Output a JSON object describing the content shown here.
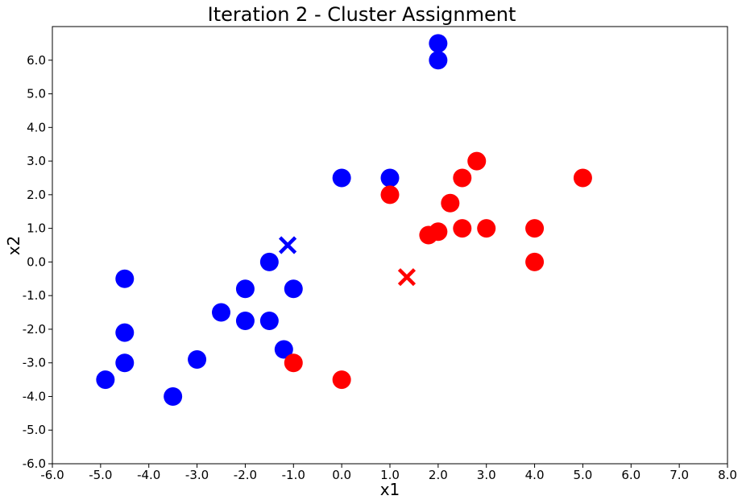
{
  "chart_data": {
    "type": "scatter",
    "title": "Iteration 2 - Cluster Assignment",
    "xlabel": "x1",
    "ylabel": "x2",
    "xlim": [
      -6.0,
      8.0
    ],
    "ylim": [
      -6.0,
      7.0
    ],
    "xticks": [
      -6.0,
      -5.0,
      -4.0,
      -3.0,
      -2.0,
      -1.0,
      0.0,
      1.0,
      2.0,
      3.0,
      4.0,
      5.0,
      6.0,
      7.0,
      8.0
    ],
    "yticks": [
      -6.0,
      -5.0,
      -4.0,
      -3.0,
      -2.0,
      -1.0,
      0.0,
      1.0,
      2.0,
      3.0,
      4.0,
      5.0,
      6.0
    ],
    "xtick_labels": [
      "-6.0",
      "-5.0",
      "-4.0",
      "-3.0",
      "-2.0",
      "-1.0",
      "0.0",
      "1.0",
      "2.0",
      "3.0",
      "4.0",
      "5.0",
      "6.0",
      "7.0",
      "8.0"
    ],
    "ytick_labels": [
      "-6.0",
      "-5.0",
      "-4.0",
      "-3.0",
      "-2.0",
      "-1.0",
      "0.0",
      "1.0",
      "2.0",
      "3.0",
      "4.0",
      "5.0",
      "6.0"
    ],
    "grid": false,
    "series": [
      {
        "color": "#0000ff",
        "marker": "circle",
        "points": [
          [
            2.0,
            6.5
          ],
          [
            2.0,
            6.0
          ],
          [
            0.0,
            2.5
          ],
          [
            1.0,
            2.5
          ],
          [
            -4.5,
            -0.5
          ],
          [
            -4.5,
            -2.1
          ],
          [
            -4.5,
            -3.0
          ],
          [
            -4.9,
            -3.5
          ],
          [
            -3.5,
            -4.0
          ],
          [
            -3.0,
            -2.9
          ],
          [
            -2.5,
            -1.5
          ],
          [
            -2.0,
            -0.8
          ],
          [
            -2.0,
            -1.75
          ],
          [
            -1.5,
            -1.75
          ],
          [
            -1.5,
            0.0
          ],
          [
            -1.0,
            -0.8
          ],
          [
            -1.2,
            -2.6
          ]
        ]
      },
      {
        "color": "#ff0000",
        "marker": "circle",
        "points": [
          [
            2.8,
            3.0
          ],
          [
            2.5,
            2.5
          ],
          [
            5.0,
            2.5
          ],
          [
            1.0,
            2.0
          ],
          [
            2.25,
            1.75
          ],
          [
            2.0,
            0.9
          ],
          [
            1.8,
            0.8
          ],
          [
            2.5,
            1.0
          ],
          [
            3.0,
            1.0
          ],
          [
            4.0,
            1.0
          ],
          [
            4.0,
            0.0
          ],
          [
            -1.0,
            -3.0
          ],
          [
            0.0,
            -3.5
          ]
        ]
      }
    ],
    "centroids": [
      {
        "color": "#0000ff",
        "marker": "x",
        "x": -1.12,
        "y": 0.5
      },
      {
        "color": "#ff0000",
        "marker": "x",
        "x": 1.35,
        "y": -0.45
      }
    ]
  }
}
